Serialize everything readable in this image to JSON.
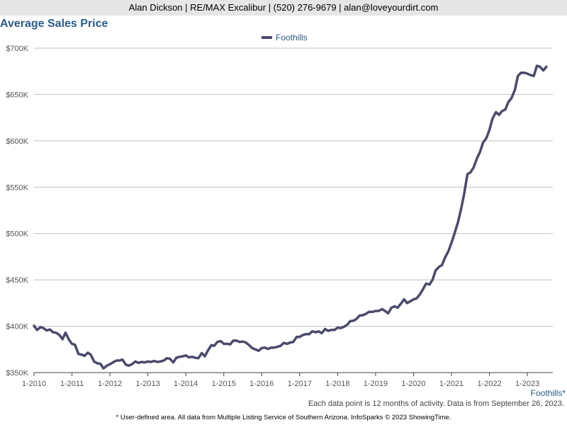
{
  "header": {
    "text": "Alan Dickson | RE/MAX Excalibur | (520) 276-9679 | alan@loveyourdirt.com"
  },
  "footer": {
    "note": "Each data point is 12 months of activity. Data is from September 26, 2023.",
    "source": "* User-defined area. All data from Multiple Listing Service of Southern Arizona. InfoSparks © 2023 ShowingTime."
  },
  "colors": {
    "line": "#4a4a6a",
    "title": "#2d5b86",
    "grid": "#bfbfbf",
    "header_bg": "#e6e6e6"
  },
  "chart_data": {
    "type": "line",
    "title": "Average Sales Price",
    "xlabel": "",
    "ylabel": "",
    "ylim": [
      350000,
      700000
    ],
    "yticks": [
      350000,
      400000,
      450000,
      500000,
      550000,
      600000,
      650000,
      700000
    ],
    "ytick_labels": [
      "$350K",
      "$400K",
      "$450K",
      "$500K",
      "$550K",
      "$600K",
      "$650K",
      "$700K"
    ],
    "xlim": [
      2010.0,
      2023.67
    ],
    "xticks": [
      2010,
      2011,
      2012,
      2013,
      2014,
      2015,
      2016,
      2017,
      2018,
      2019,
      2020,
      2021,
      2022,
      2023
    ],
    "xtick_labels": [
      "1-2010",
      "1-2011",
      "1-2012",
      "1-2013",
      "1-2014",
      "1-2015",
      "1-2016",
      "1-2017",
      "1-2018",
      "1-2019",
      "1-2020",
      "1-2021",
      "1-2022",
      "1-2023"
    ],
    "grid": true,
    "legend": "top-center",
    "area_label": "Foothills*",
    "series": [
      {
        "name": "Foothills",
        "points": [
          [
            2010.0,
            400500
          ],
          [
            2010.08,
            396000
          ],
          [
            2010.17,
            399000
          ],
          [
            2010.25,
            398000
          ],
          [
            2010.33,
            395500
          ],
          [
            2010.42,
            396500
          ],
          [
            2010.5,
            393500
          ],
          [
            2010.58,
            393000
          ],
          [
            2010.67,
            390500
          ],
          [
            2010.75,
            386000
          ],
          [
            2010.83,
            393000
          ],
          [
            2010.92,
            385500
          ],
          [
            2011.0,
            381000
          ],
          [
            2011.08,
            380000
          ],
          [
            2011.17,
            370000
          ],
          [
            2011.25,
            369500
          ],
          [
            2011.33,
            368000
          ],
          [
            2011.42,
            371500
          ],
          [
            2011.5,
            369000
          ],
          [
            2011.58,
            362000
          ],
          [
            2011.67,
            360000
          ],
          [
            2011.75,
            359500
          ],
          [
            2011.83,
            354500
          ],
          [
            2011.92,
            357500
          ],
          [
            2012.0,
            359000
          ],
          [
            2012.08,
            361000
          ],
          [
            2012.17,
            363000
          ],
          [
            2012.25,
            363000
          ],
          [
            2012.33,
            364000
          ],
          [
            2012.42,
            358500
          ],
          [
            2012.5,
            357500
          ],
          [
            2012.58,
            359000
          ],
          [
            2012.67,
            362000
          ],
          [
            2012.75,
            360500
          ],
          [
            2012.83,
            361500
          ],
          [
            2012.92,
            361000
          ],
          [
            2013.0,
            362000
          ],
          [
            2013.08,
            361500
          ],
          [
            2013.17,
            362500
          ],
          [
            2013.25,
            361500
          ],
          [
            2013.33,
            362000
          ],
          [
            2013.42,
            363000
          ],
          [
            2013.5,
            365500
          ],
          [
            2013.58,
            365000
          ],
          [
            2013.67,
            361000
          ],
          [
            2013.75,
            366000
          ],
          [
            2013.83,
            367000
          ],
          [
            2013.92,
            367500
          ],
          [
            2014.0,
            368500
          ],
          [
            2014.08,
            366500
          ],
          [
            2014.17,
            367000
          ],
          [
            2014.25,
            366000
          ],
          [
            2014.33,
            365500
          ],
          [
            2014.42,
            371000
          ],
          [
            2014.5,
            367500
          ],
          [
            2014.58,
            373500
          ],
          [
            2014.67,
            379500
          ],
          [
            2014.75,
            379000
          ],
          [
            2014.83,
            383000
          ],
          [
            2014.92,
            384000
          ],
          [
            2015.0,
            381000
          ],
          [
            2015.08,
            381000
          ],
          [
            2015.17,
            380500
          ],
          [
            2015.25,
            384500
          ],
          [
            2015.33,
            384500
          ],
          [
            2015.42,
            383000
          ],
          [
            2015.5,
            383500
          ],
          [
            2015.58,
            382500
          ],
          [
            2015.67,
            379500
          ],
          [
            2015.75,
            376500
          ],
          [
            2015.83,
            375000
          ],
          [
            2015.92,
            373500
          ],
          [
            2016.0,
            376500
          ],
          [
            2016.08,
            377000
          ],
          [
            2016.17,
            375500
          ],
          [
            2016.25,
            377000
          ],
          [
            2016.33,
            377000
          ],
          [
            2016.42,
            378000
          ],
          [
            2016.5,
            379000
          ],
          [
            2016.58,
            382000
          ],
          [
            2016.67,
            381000
          ],
          [
            2016.75,
            382500
          ],
          [
            2016.83,
            383000
          ],
          [
            2016.92,
            388500
          ],
          [
            2017.0,
            388500
          ],
          [
            2017.08,
            390500
          ],
          [
            2017.17,
            391500
          ],
          [
            2017.25,
            391500
          ],
          [
            2017.33,
            394500
          ],
          [
            2017.42,
            393500
          ],
          [
            2017.5,
            394500
          ],
          [
            2017.58,
            392500
          ],
          [
            2017.67,
            397000
          ],
          [
            2017.75,
            395000
          ],
          [
            2017.83,
            396000
          ],
          [
            2017.92,
            396000
          ],
          [
            2018.0,
            398500
          ],
          [
            2018.08,
            398000
          ],
          [
            2018.17,
            399500
          ],
          [
            2018.25,
            401500
          ],
          [
            2018.33,
            405500
          ],
          [
            2018.42,
            406000
          ],
          [
            2018.5,
            408000
          ],
          [
            2018.58,
            411500
          ],
          [
            2018.67,
            412000
          ],
          [
            2018.75,
            413500
          ],
          [
            2018.83,
            415500
          ],
          [
            2018.92,
            415500
          ],
          [
            2019.0,
            416500
          ],
          [
            2019.08,
            416500
          ],
          [
            2019.17,
            418500
          ],
          [
            2019.25,
            416500
          ],
          [
            2019.33,
            414000
          ],
          [
            2019.42,
            420000
          ],
          [
            2019.5,
            421500
          ],
          [
            2019.58,
            420000
          ],
          [
            2019.67,
            424500
          ],
          [
            2019.75,
            429000
          ],
          [
            2019.83,
            425000
          ],
          [
            2019.92,
            427000
          ],
          [
            2020.0,
            429000
          ],
          [
            2020.08,
            430000
          ],
          [
            2020.17,
            434500
          ],
          [
            2020.25,
            440000
          ],
          [
            2020.33,
            446000
          ],
          [
            2020.42,
            445000
          ],
          [
            2020.5,
            450000
          ],
          [
            2020.58,
            460000
          ],
          [
            2020.67,
            464000
          ],
          [
            2020.75,
            466000
          ],
          [
            2020.83,
            474000
          ],
          [
            2020.92,
            481000
          ],
          [
            2021.0,
            490000
          ],
          [
            2021.08,
            500000
          ],
          [
            2021.17,
            512000
          ],
          [
            2021.25,
            526000
          ],
          [
            2021.33,
            542000
          ],
          [
            2021.42,
            564000
          ],
          [
            2021.5,
            566000
          ],
          [
            2021.58,
            571000
          ],
          [
            2021.67,
            581000
          ],
          [
            2021.75,
            588000
          ],
          [
            2021.83,
            598000
          ],
          [
            2021.92,
            603000
          ],
          [
            2022.0,
            612000
          ],
          [
            2022.08,
            624000
          ],
          [
            2022.17,
            631000
          ],
          [
            2022.25,
            628000
          ],
          [
            2022.33,
            632000
          ],
          [
            2022.42,
            634000
          ],
          [
            2022.5,
            642000
          ],
          [
            2022.58,
            646000
          ],
          [
            2022.67,
            655000
          ],
          [
            2022.75,
            670000
          ],
          [
            2022.83,
            673500
          ],
          [
            2022.92,
            673500
          ],
          [
            2023.0,
            672500
          ],
          [
            2023.08,
            671000
          ],
          [
            2023.17,
            670000
          ],
          [
            2023.25,
            681000
          ],
          [
            2023.33,
            680000
          ],
          [
            2023.42,
            676000
          ],
          [
            2023.5,
            680000
          ]
        ]
      }
    ]
  }
}
